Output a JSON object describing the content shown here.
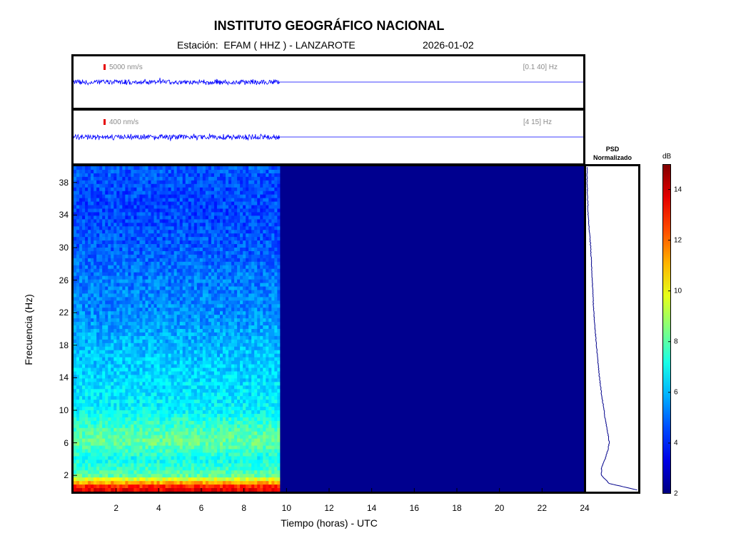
{
  "header": {
    "title": "INSTITUTO GEOGRÁFICO NACIONAL",
    "station_line": "Estación:  EFAM ( HHZ ) - LANZAROTE",
    "date": "2026-01-02"
  },
  "trace_top": {
    "scale": "5000 nm/s",
    "band": "[0.1 40] Hz"
  },
  "trace_bottom": {
    "scale": "400 nm/s",
    "band": "[4 15] Hz"
  },
  "psd": {
    "title_line1": "PSD",
    "title_line2": "Normalizado"
  },
  "colorbar": {
    "unit": "dB",
    "min": 2,
    "max": 15,
    "ticks": [
      "2",
      "4",
      "6",
      "8",
      "10",
      "12",
      "14"
    ],
    "colormap": "jet"
  },
  "colors": {
    "trace": "#0000ff",
    "psd_line": "#00008b",
    "empty_spectrogram": "#00008f"
  },
  "chart_data": {
    "type": "heatmap",
    "xlabel": "Tiempo (horas) - UTC",
    "ylabel": "Frecuencia  (Hz)",
    "xlim": [
      0,
      24
    ],
    "ylim": [
      0,
      40
    ],
    "x_ticks": [
      "2",
      "4",
      "6",
      "8",
      "10",
      "12",
      "14",
      "16",
      "18",
      "20",
      "22",
      "24"
    ],
    "y_ticks": [
      "2",
      "6",
      "10",
      "14",
      "18",
      "22",
      "26",
      "30",
      "34",
      "38"
    ],
    "data_end_hour": 9.7,
    "spectrum_db": {
      "frequency_hz": [
        0.5,
        1,
        2,
        4,
        6,
        7,
        8,
        10,
        12,
        14,
        18,
        22,
        26,
        30,
        34,
        38,
        40
      ],
      "level_db": [
        13.5,
        11.5,
        8.0,
        7.0,
        8.2,
        8.0,
        7.6,
        6.8,
        6.6,
        6.4,
        6.0,
        5.4,
        5.2,
        4.8,
        4.5,
        4.6,
        4.8
      ]
    },
    "psd_normalized": {
      "frequency_hz": [
        0.2,
        1,
        2,
        3,
        4,
        5,
        6,
        7,
        8,
        9,
        10,
        12,
        14,
        18,
        22,
        26,
        30,
        34,
        38,
        40
      ],
      "value": [
        1.0,
        0.45,
        0.3,
        0.3,
        0.37,
        0.42,
        0.45,
        0.43,
        0.4,
        0.37,
        0.35,
        0.3,
        0.26,
        0.2,
        0.15,
        0.12,
        0.09,
        0.04,
        0.02,
        0.02
      ]
    }
  }
}
